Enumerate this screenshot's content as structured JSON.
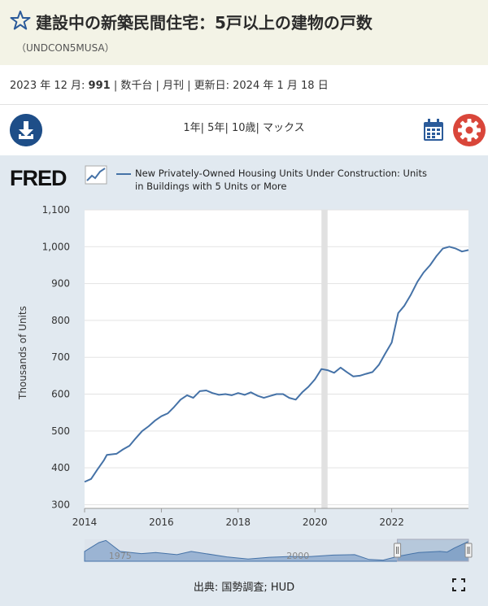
{
  "header": {
    "title": "建設中の新築民間住宅：5戸以上の建物の戸数",
    "series_id": "（UNDCON5MUSA）"
  },
  "meta": {
    "date_label": "2023 年 12 月:",
    "value": "991",
    "rest": "| 数千台 | 月刊 | 更新日: 2024 年 1 月 18 日"
  },
  "toolbar": {
    "range_1y": "1年",
    "range_5y": "5年",
    "range_10y": "10歳",
    "range_max": "マックス"
  },
  "logo": "FRED",
  "source": "出典: 国勢調査; HUD",
  "chart_data": {
    "type": "line",
    "legend": "New Privately-Owned Housing Units Under Construction: Units in Buildings with 5 Units or More",
    "ylabel": "Thousands of Units",
    "ylim": [
      290,
      1100
    ],
    "yticks": [
      "300",
      "400",
      "500",
      "600",
      "700",
      "800",
      "900",
      "1,000",
      "1,100"
    ],
    "xticks": [
      {
        "label": "2014",
        "t": 2014.0
      },
      {
        "label": "2016",
        "t": 2016.0
      },
      {
        "label": "2018",
        "t": 2018.0
      },
      {
        "label": "2020",
        "t": 2020.0
      },
      {
        "label": "2022",
        "t": 2022.0
      }
    ],
    "xlim": [
      2014.0,
      2024.0
    ],
    "recession": [
      2020.17,
      2020.33
    ],
    "series": [
      {
        "color": "#4572a7",
        "points": [
          [
            2014.0,
            362
          ],
          [
            2014.17,
            370
          ],
          [
            2014.33,
            395
          ],
          [
            2014.5,
            420
          ],
          [
            2014.58,
            435
          ],
          [
            2014.83,
            438
          ],
          [
            2015.0,
            450
          ],
          [
            2015.17,
            460
          ],
          [
            2015.33,
            480
          ],
          [
            2015.5,
            500
          ],
          [
            2015.67,
            513
          ],
          [
            2015.83,
            528
          ],
          [
            2016.0,
            540
          ],
          [
            2016.17,
            548
          ],
          [
            2016.33,
            565
          ],
          [
            2016.5,
            585
          ],
          [
            2016.67,
            597
          ],
          [
            2016.83,
            590
          ],
          [
            2017.0,
            608
          ],
          [
            2017.17,
            610
          ],
          [
            2017.33,
            603
          ],
          [
            2017.5,
            598
          ],
          [
            2017.67,
            600
          ],
          [
            2017.83,
            597
          ],
          [
            2018.0,
            603
          ],
          [
            2018.17,
            598
          ],
          [
            2018.33,
            605
          ],
          [
            2018.5,
            596
          ],
          [
            2018.67,
            590
          ],
          [
            2018.83,
            595
          ],
          [
            2019.0,
            600
          ],
          [
            2019.17,
            600
          ],
          [
            2019.33,
            590
          ],
          [
            2019.5,
            585
          ],
          [
            2019.67,
            605
          ],
          [
            2019.83,
            620
          ],
          [
            2020.0,
            640
          ],
          [
            2020.17,
            668
          ],
          [
            2020.33,
            665
          ],
          [
            2020.5,
            658
          ],
          [
            2020.67,
            672
          ],
          [
            2020.83,
            660
          ],
          [
            2021.0,
            648
          ],
          [
            2021.17,
            650
          ],
          [
            2021.33,
            655
          ],
          [
            2021.5,
            660
          ],
          [
            2021.67,
            680
          ],
          [
            2021.83,
            710
          ],
          [
            2022.0,
            740
          ],
          [
            2022.17,
            820
          ],
          [
            2022.33,
            840
          ],
          [
            2022.5,
            870
          ],
          [
            2022.67,
            905
          ],
          [
            2022.83,
            930
          ],
          [
            2023.0,
            950
          ],
          [
            2023.17,
            975
          ],
          [
            2023.33,
            995
          ],
          [
            2023.5,
            1000
          ],
          [
            2023.67,
            995
          ],
          [
            2023.83,
            987
          ],
          [
            2024.0,
            991
          ]
        ]
      }
    ],
    "navigator": {
      "labels": [
        {
          "label": "1975",
          "t": 1975
        },
        {
          "label": "2000",
          "t": 2000
        }
      ],
      "xlim": [
        1970,
        2024
      ],
      "selection": [
        2014,
        2024
      ]
    }
  }
}
